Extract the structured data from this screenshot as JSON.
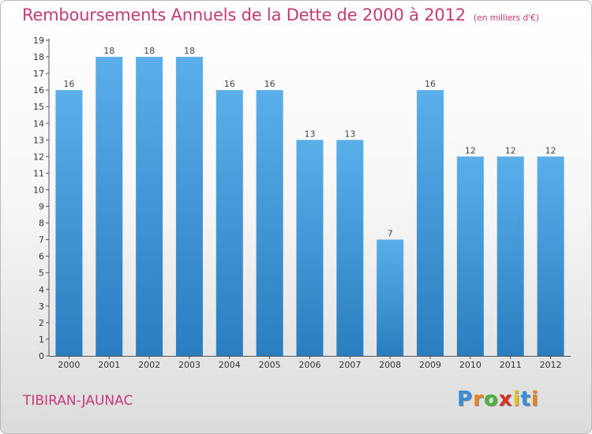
{
  "title": "Remboursements Annuels de la Dette de 2000 à 2012",
  "subtitle": "(en milliers d'€)",
  "commune": "TIBIRAN-JAUNAC",
  "logo": {
    "letters": [
      "P",
      "r",
      "o",
      "x",
      "i",
      "t",
      "i"
    ],
    "colors": [
      "#3a8ed8",
      "#e8871e",
      "#4bb23f",
      "#d8322a",
      "#e8c51e",
      "#3a8ed8",
      "#e8871e"
    ]
  },
  "colors": {
    "bar_top": "#5aaeea",
    "bar_bottom": "#2a7ec0",
    "title": "#c43a74"
  },
  "chart_data": {
    "type": "bar",
    "categories": [
      "2000",
      "2001",
      "2002",
      "2003",
      "2004",
      "2005",
      "2006",
      "2007",
      "2008",
      "2009",
      "2010",
      "2011",
      "2012"
    ],
    "values": [
      16,
      18,
      18,
      18,
      16,
      16,
      13,
      13,
      7,
      16,
      12,
      12,
      12
    ],
    "ylim": [
      0,
      19
    ],
    "yticks": [
      "0",
      "1",
      "2",
      "3",
      "4",
      "5",
      "6",
      "7",
      "8",
      "9",
      "10",
      "11",
      "12",
      "13",
      "14",
      "15",
      "16",
      "17",
      "18",
      "19"
    ],
    "grid": false
  }
}
